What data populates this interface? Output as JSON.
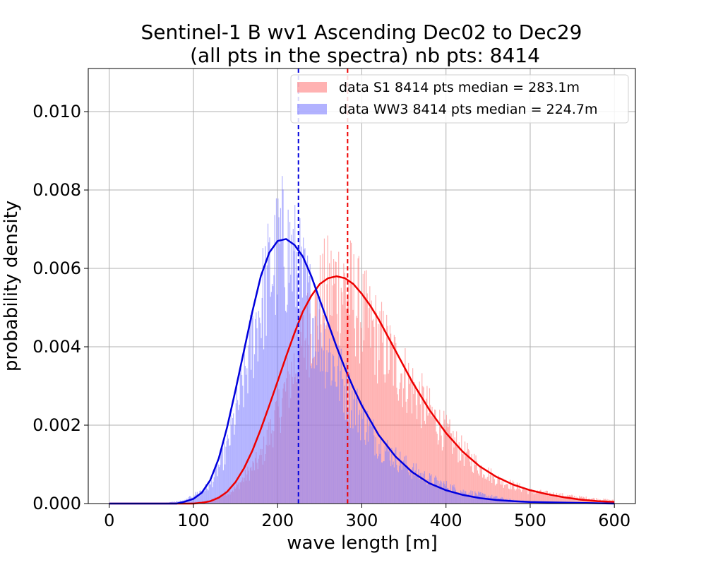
{
  "chart_data": {
    "type": "histogram",
    "title_lines": [
      "Sentinel-1 B wv1 Ascending Dec02 to Dec29",
      "(all pts in the spectra) nb pts: 8414"
    ],
    "xlabel": "wave length [m]",
    "ylabel": "probability density",
    "xlim": [
      -25,
      625
    ],
    "ylim": [
      0,
      0.0111
    ],
    "grid": true,
    "x_ticks": [
      {
        "value": 0,
        "label": "0"
      },
      {
        "value": 100,
        "label": "100"
      },
      {
        "value": 200,
        "label": "200"
      },
      {
        "value": 300,
        "label": "300"
      },
      {
        "value": 400,
        "label": "400"
      },
      {
        "value": 500,
        "label": "500"
      },
      {
        "value": 600,
        "label": "600"
      }
    ],
    "y_ticks": [
      {
        "value": 0.0,
        "label": "0.000"
      },
      {
        "value": 0.002,
        "label": "0.002"
      },
      {
        "value": 0.004,
        "label": "0.004"
      },
      {
        "value": 0.006,
        "label": "0.006"
      },
      {
        "value": 0.008,
        "label": "0.008"
      },
      {
        "value": 0.01,
        "label": "0.010"
      }
    ],
    "legend_position": "top-right",
    "series": [
      {
        "name": "data S1 8414 pts median = 283.1m",
        "color": "#ff7f7f",
        "fit_color": "#ee0000",
        "median": 283.1,
        "histogram_range": [
          0,
          600
        ],
        "bin_width": 1,
        "density_envelope": [
          [
            0,
            0
          ],
          [
            80,
            0
          ],
          [
            120,
            0.0001
          ],
          [
            150,
            0.0005
          ],
          [
            180,
            0.0015
          ],
          [
            200,
            0.003
          ],
          [
            220,
            0.0045
          ],
          [
            240,
            0.006
          ],
          [
            255,
            0.0068
          ],
          [
            270,
            0.0072
          ],
          [
            285,
            0.007
          ],
          [
            300,
            0.0062
          ],
          [
            320,
            0.0054
          ],
          [
            340,
            0.0046
          ],
          [
            360,
            0.0038
          ],
          [
            380,
            0.003
          ],
          [
            400,
            0.0023
          ],
          [
            420,
            0.0017
          ],
          [
            440,
            0.0012
          ],
          [
            460,
            0.0008
          ],
          [
            480,
            0.0006
          ],
          [
            500,
            0.0004
          ],
          [
            530,
            0.0003
          ],
          [
            560,
            0.0002
          ],
          [
            600,
            0.0001
          ]
        ],
        "fit_curve": [
          [
            0,
            0
          ],
          [
            100,
            0
          ],
          [
            110,
            2e-05
          ],
          [
            120,
            6e-05
          ],
          [
            130,
            0.00015
          ],
          [
            140,
            0.0003
          ],
          [
            150,
            0.00055
          ],
          [
            160,
            0.0009
          ],
          [
            170,
            0.00135
          ],
          [
            180,
            0.0019
          ],
          [
            190,
            0.0025
          ],
          [
            200,
            0.00312
          ],
          [
            210,
            0.00375
          ],
          [
            220,
            0.00435
          ],
          [
            230,
            0.0049
          ],
          [
            240,
            0.0053
          ],
          [
            250,
            0.0056
          ],
          [
            260,
            0.00575
          ],
          [
            270,
            0.0058
          ],
          [
            280,
            0.00575
          ],
          [
            290,
            0.0056
          ],
          [
            300,
            0.00535
          ],
          [
            310,
            0.00505
          ],
          [
            320,
            0.0047
          ],
          [
            330,
            0.0043
          ],
          [
            340,
            0.0039
          ],
          [
            350,
            0.0035
          ],
          [
            360,
            0.0031
          ],
          [
            380,
            0.0024
          ],
          [
            400,
            0.0018
          ],
          [
            420,
            0.00132
          ],
          [
            440,
            0.00095
          ],
          [
            460,
            0.00068
          ],
          [
            480,
            0.00048
          ],
          [
            500,
            0.00034
          ],
          [
            520,
            0.00024
          ],
          [
            540,
            0.00016
          ],
          [
            560,
            0.0001
          ],
          [
            580,
            6e-05
          ],
          [
            600,
            4e-05
          ]
        ]
      },
      {
        "name": "data WW3 8414 pts median = 224.7m",
        "color": "#7f7fff",
        "fit_color": "#0000dd",
        "median": 224.7,
        "histogram_range": [
          0,
          600
        ],
        "bin_width": 1,
        "density_envelope": [
          [
            0,
            0
          ],
          [
            60,
            0
          ],
          [
            90,
            0.0001
          ],
          [
            120,
            0.0006
          ],
          [
            140,
            0.0018
          ],
          [
            160,
            0.004
          ],
          [
            175,
            0.006
          ],
          [
            190,
            0.0075
          ],
          [
            205,
            0.0085
          ],
          [
            215,
            0.0082
          ],
          [
            225,
            0.0075
          ],
          [
            240,
            0.0063
          ],
          [
            260,
            0.005
          ],
          [
            280,
            0.0038
          ],
          [
            300,
            0.0028
          ],
          [
            320,
            0.002
          ],
          [
            340,
            0.0015
          ],
          [
            360,
            0.0011
          ],
          [
            380,
            0.0008
          ],
          [
            400,
            0.0006
          ],
          [
            420,
            0.0004
          ],
          [
            440,
            0.0003
          ],
          [
            460,
            0.0002
          ],
          [
            480,
            0.0001
          ],
          [
            520,
            5e-05
          ],
          [
            600,
            0
          ]
        ],
        "fit_curve": [
          [
            0,
            0
          ],
          [
            80,
            0
          ],
          [
            90,
            5e-05
          ],
          [
            100,
            0.00012
          ],
          [
            110,
            0.00028
          ],
          [
            120,
            0.0006
          ],
          [
            130,
            0.00115
          ],
          [
            140,
            0.00195
          ],
          [
            150,
            0.0029
          ],
          [
            160,
            0.0039
          ],
          [
            170,
            0.0049
          ],
          [
            180,
            0.0058
          ],
          [
            190,
            0.0064
          ],
          [
            200,
            0.0067
          ],
          [
            210,
            0.00675
          ],
          [
            220,
            0.0066
          ],
          [
            230,
            0.0063
          ],
          [
            240,
            0.0058
          ],
          [
            250,
            0.0052
          ],
          [
            260,
            0.0046
          ],
          [
            270,
            0.004
          ],
          [
            280,
            0.00345
          ],
          [
            290,
            0.00295
          ],
          [
            300,
            0.0025
          ],
          [
            320,
            0.00175
          ],
          [
            340,
            0.0012
          ],
          [
            360,
            0.0008
          ],
          [
            380,
            0.00052
          ],
          [
            400,
            0.00034
          ],
          [
            420,
            0.00022
          ],
          [
            440,
            0.00014
          ],
          [
            460,
            9e-05
          ],
          [
            480,
            6e-05
          ],
          [
            500,
            4e-05
          ],
          [
            550,
            2e-05
          ],
          [
            600,
            0
          ]
        ]
      }
    ]
  }
}
